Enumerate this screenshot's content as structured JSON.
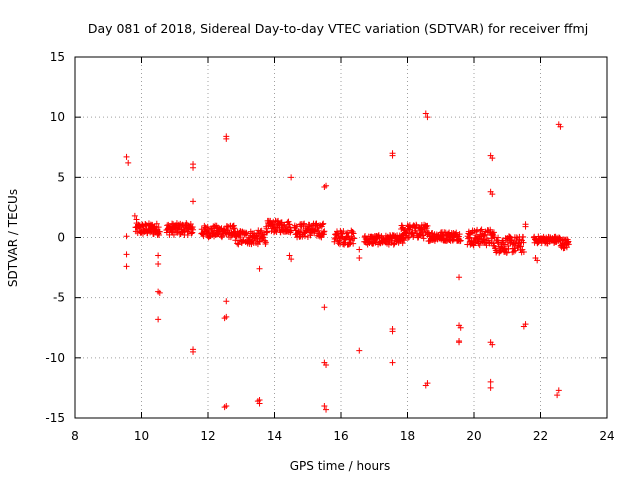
{
  "chart_data": {
    "type": "scatter",
    "title": "Day 081 of 2018, Sidereal Day-to-day VTEC variation (SDTVAR) for receiver ffmj",
    "xlabel": "GPS time / hours",
    "ylabel": "SDTVAR / TECUs",
    "xlim": [
      8,
      24
    ],
    "ylim": [
      -15,
      15
    ],
    "xticks": [
      "8",
      "10",
      "12",
      "14",
      "16",
      "18",
      "20",
      "22",
      "24"
    ],
    "yticks": [
      "-15",
      "-10",
      "-5",
      "0",
      "5",
      "10",
      "15"
    ],
    "grid": true,
    "marker": "plus",
    "color": "#ff0000",
    "band_segments": [
      {
        "x0": 9.82,
        "x1": 10.55,
        "y": 0.7,
        "spread": 0.5
      },
      {
        "x0": 10.75,
        "x1": 11.55,
        "y": 0.7,
        "spread": 0.5
      },
      {
        "x0": 11.8,
        "x1": 12.8,
        "y": 0.5,
        "spread": 0.5
      },
      {
        "x0": 12.8,
        "x1": 13.75,
        "y": 0.0,
        "spread": 0.6
      },
      {
        "x0": 13.75,
        "x1": 14.5,
        "y": 0.9,
        "spread": 0.5
      },
      {
        "x0": 14.6,
        "x1": 15.5,
        "y": 0.6,
        "spread": 0.6
      },
      {
        "x0": 15.8,
        "x1": 16.4,
        "y": 0.0,
        "spread": 0.6
      },
      {
        "x0": 16.7,
        "x1": 17.9,
        "y": -0.2,
        "spread": 0.4
      },
      {
        "x0": 17.8,
        "x1": 18.6,
        "y": 0.5,
        "spread": 0.6
      },
      {
        "x0": 18.6,
        "x1": 19.6,
        "y": 0.1,
        "spread": 0.4
      },
      {
        "x0": 19.8,
        "x1": 20.6,
        "y": 0.0,
        "spread": 0.7
      },
      {
        "x0": 20.6,
        "x1": 21.5,
        "y": -0.6,
        "spread": 0.7
      },
      {
        "x0": 21.8,
        "x1": 22.6,
        "y": -0.2,
        "spread": 0.3
      },
      {
        "x0": 22.6,
        "x1": 22.85,
        "y": -0.5,
        "spread": 0.4
      }
    ],
    "points": [
      [
        9.55,
        6.7
      ],
      [
        9.6,
        6.2
      ],
      [
        9.55,
        0.1
      ],
      [
        9.55,
        -1.4
      ],
      [
        9.55,
        -2.4
      ],
      [
        9.8,
        1.8
      ],
      [
        9.85,
        1.5
      ],
      [
        10.5,
        -1.5
      ],
      [
        10.5,
        -2.2
      ],
      [
        10.5,
        -4.5
      ],
      [
        10.55,
        -4.6
      ],
      [
        10.5,
        -6.8
      ],
      [
        11.55,
        6.1
      ],
      [
        11.55,
        5.8
      ],
      [
        11.55,
        3.0
      ],
      [
        11.55,
        -9.3
      ],
      [
        11.55,
        -9.5
      ],
      [
        12.55,
        8.4
      ],
      [
        12.55,
        8.2
      ],
      [
        12.55,
        -5.3
      ],
      [
        12.55,
        -6.6
      ],
      [
        12.5,
        -6.7
      ],
      [
        12.5,
        -14.1
      ],
      [
        12.55,
        -14.0
      ],
      [
        13.55,
        -2.6
      ],
      [
        13.55,
        -13.5
      ],
      [
        13.55,
        -13.8
      ],
      [
        13.5,
        -13.6
      ],
      [
        14.5,
        5.0
      ],
      [
        14.45,
        -1.5
      ],
      [
        14.5,
        -1.8
      ],
      [
        15.55,
        4.3
      ],
      [
        15.5,
        4.2
      ],
      [
        15.5,
        -5.8
      ],
      [
        15.5,
        -10.4
      ],
      [
        15.55,
        -10.6
      ],
      [
        15.5,
        -14.0
      ],
      [
        15.55,
        -14.3
      ],
      [
        16.55,
        -1.0
      ],
      [
        16.55,
        -1.7
      ],
      [
        16.55,
        -9.4
      ],
      [
        17.55,
        7.0
      ],
      [
        17.55,
        6.8
      ],
      [
        17.55,
        -7.6
      ],
      [
        17.55,
        -7.8
      ],
      [
        17.55,
        -10.4
      ],
      [
        18.55,
        10.3
      ],
      [
        18.6,
        10.0
      ],
      [
        18.6,
        -12.1
      ],
      [
        18.55,
        -12.3
      ],
      [
        19.55,
        -3.3
      ],
      [
        19.55,
        -7.3
      ],
      [
        19.6,
        -7.5
      ],
      [
        19.55,
        -8.6
      ],
      [
        19.55,
        -8.7
      ],
      [
        20.5,
        6.8
      ],
      [
        20.55,
        6.6
      ],
      [
        20.5,
        3.8
      ],
      [
        20.55,
        3.6
      ],
      [
        20.5,
        -8.7
      ],
      [
        20.55,
        -8.9
      ],
      [
        20.5,
        -12.0
      ],
      [
        20.5,
        -12.5
      ],
      [
        21.55,
        1.1
      ],
      [
        21.55,
        0.9
      ],
      [
        21.55,
        -7.2
      ],
      [
        21.5,
        -7.4
      ],
      [
        21.85,
        -1.7
      ],
      [
        21.9,
        -1.9
      ],
      [
        22.55,
        9.4
      ],
      [
        22.6,
        9.2
      ],
      [
        22.55,
        -12.7
      ],
      [
        22.5,
        -13.1
      ]
    ]
  }
}
